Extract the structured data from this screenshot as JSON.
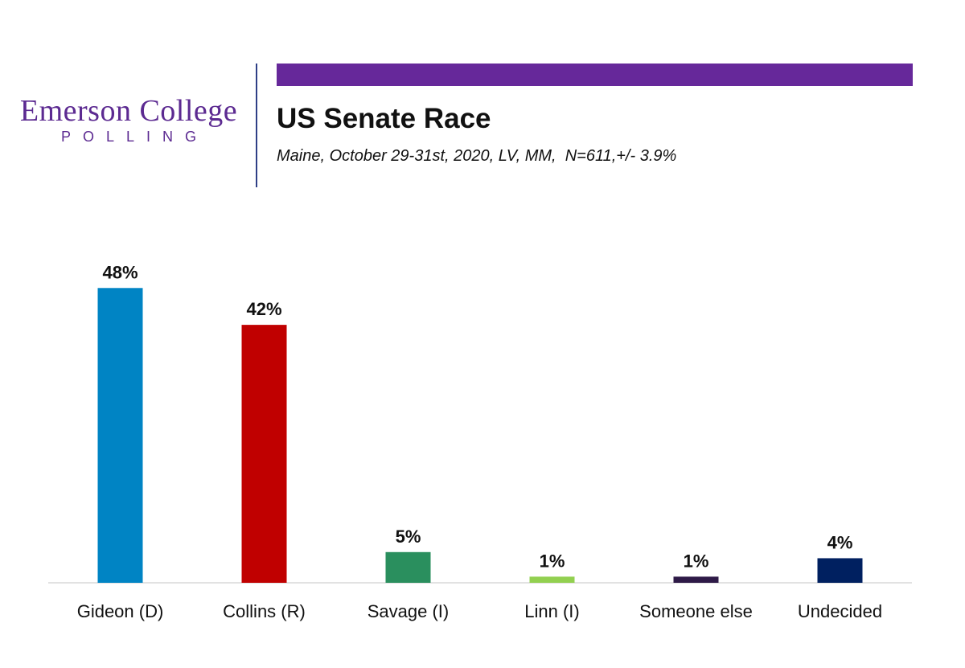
{
  "logo": {
    "main": "Emerson College",
    "sub": "POLLING"
  },
  "header": {
    "title": "US Senate Race",
    "subtitle": "Maine, October 29-31st, 2020, LV, MM,  N=611,+/- 3.9%",
    "accent_color": "#66289a"
  },
  "chart_data": {
    "type": "bar",
    "title": "US Senate Race",
    "categories": [
      "Gideon (D)",
      "Collins (R)",
      "Savage (I)",
      "Linn (I)",
      "Someone else",
      "Undecided"
    ],
    "values": [
      48,
      42,
      5,
      1,
      1,
      4
    ],
    "value_labels": [
      "48%",
      "42%",
      "5%",
      "1%",
      "1%",
      "4%"
    ],
    "colors": [
      "#0084c4",
      "#c00000",
      "#2a8f5e",
      "#92d050",
      "#2e1a47",
      "#002060"
    ],
    "xlabel": "",
    "ylabel": "",
    "ylim": [
      0,
      50
    ],
    "grid": false,
    "legend": "none"
  }
}
